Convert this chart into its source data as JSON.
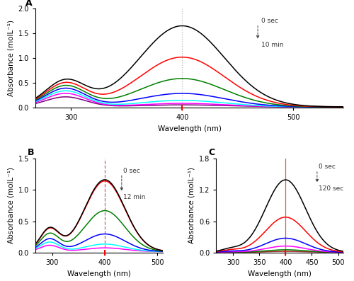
{
  "panel_A": {
    "label": "A",
    "xlim": [
      268,
      545
    ],
    "ylim": [
      0.0,
      2.0
    ],
    "yticks": [
      0.0,
      0.5,
      1.0,
      1.5,
      2.0
    ],
    "xticks": [
      300,
      400,
      500
    ],
    "ylabel": "Absorbance (molL⁻¹)",
    "xlabel": "Wavelength (nm)",
    "annotation_top": "0 sec",
    "annotation_bot": "10 min",
    "dashed_color": "#aaaaaa",
    "dashed_style": ":",
    "peak_wavelength": 400,
    "ann_x": 468,
    "ann_y_top": 1.82,
    "ann_y_bot": 1.35,
    "colors": [
      "black",
      "red",
      "green",
      "blue",
      "cyan",
      "magenta",
      "purple"
    ],
    "peak_heights": [
      1.63,
      1.0,
      0.57,
      0.27,
      0.13,
      0.07,
      0.04
    ],
    "shoulder_heights": [
      0.52,
      0.47,
      0.42,
      0.37,
      0.32,
      0.27,
      0.2
    ],
    "shoulder_wl": 295,
    "shoulder_sigma": 18,
    "peak_sigma": 38,
    "baseline": 0.02
  },
  "panel_B": {
    "label": "B",
    "xlim": [
      268,
      510
    ],
    "ylim": [
      0.0,
      1.5
    ],
    "yticks": [
      0.0,
      0.5,
      1.0,
      1.5
    ],
    "xticks": [
      300,
      400,
      500
    ],
    "ylabel": "Absorbance (molL⁻¹)",
    "xlabel": "Wavelength (nm)",
    "annotation_top": "0 sec",
    "annotation_bot": "12 min",
    "dashed_color": "#cc4444",
    "dashed_style": "--",
    "peak_wavelength": 400,
    "ann_x": 432,
    "ann_y_top": 1.35,
    "ann_y_bot": 0.95,
    "colors": [
      "black",
      "red",
      "green",
      "blue",
      "cyan",
      "magenta"
    ],
    "peak_heights": [
      1.14,
      1.12,
      0.65,
      0.28,
      0.12,
      0.06
    ],
    "shoulder_heights": [
      0.36,
      0.35,
      0.28,
      0.2,
      0.15,
      0.1
    ],
    "shoulder_wl": 295,
    "shoulder_sigma": 18,
    "peak_sigma": 38,
    "baseline": 0.02
  },
  "panel_C": {
    "label": "C",
    "xlim": [
      268,
      510
    ],
    "ylim": [
      0.0,
      1.8
    ],
    "yticks": [
      0.0,
      0.6,
      1.2,
      1.8
    ],
    "xticks": [
      300,
      350,
      400,
      450,
      500
    ],
    "ylabel": "Absorbance (molL⁻¹)",
    "xlabel": "Wavelength (nm)",
    "annotation_top": "0 sec",
    "annotation_bot": "120 sec",
    "dashed_color": "#cc4444",
    "dashed_style": "-",
    "peak_wavelength": 400,
    "ann_x": 460,
    "ann_y_top": 1.7,
    "ann_y_bot": 1.3,
    "colors": [
      "black",
      "red",
      "blue",
      "magenta",
      "green",
      "brown"
    ],
    "peak_heights": [
      1.38,
      0.67,
      0.27,
      0.12,
      0.05,
      0.02
    ],
    "shoulder_heights": [
      0.06,
      0.04,
      0.02,
      0.01,
      0.005,
      0.002
    ],
    "shoulder_wl": 295,
    "shoulder_sigma": 18,
    "peak_sigma": 38,
    "baseline": 0.01
  }
}
